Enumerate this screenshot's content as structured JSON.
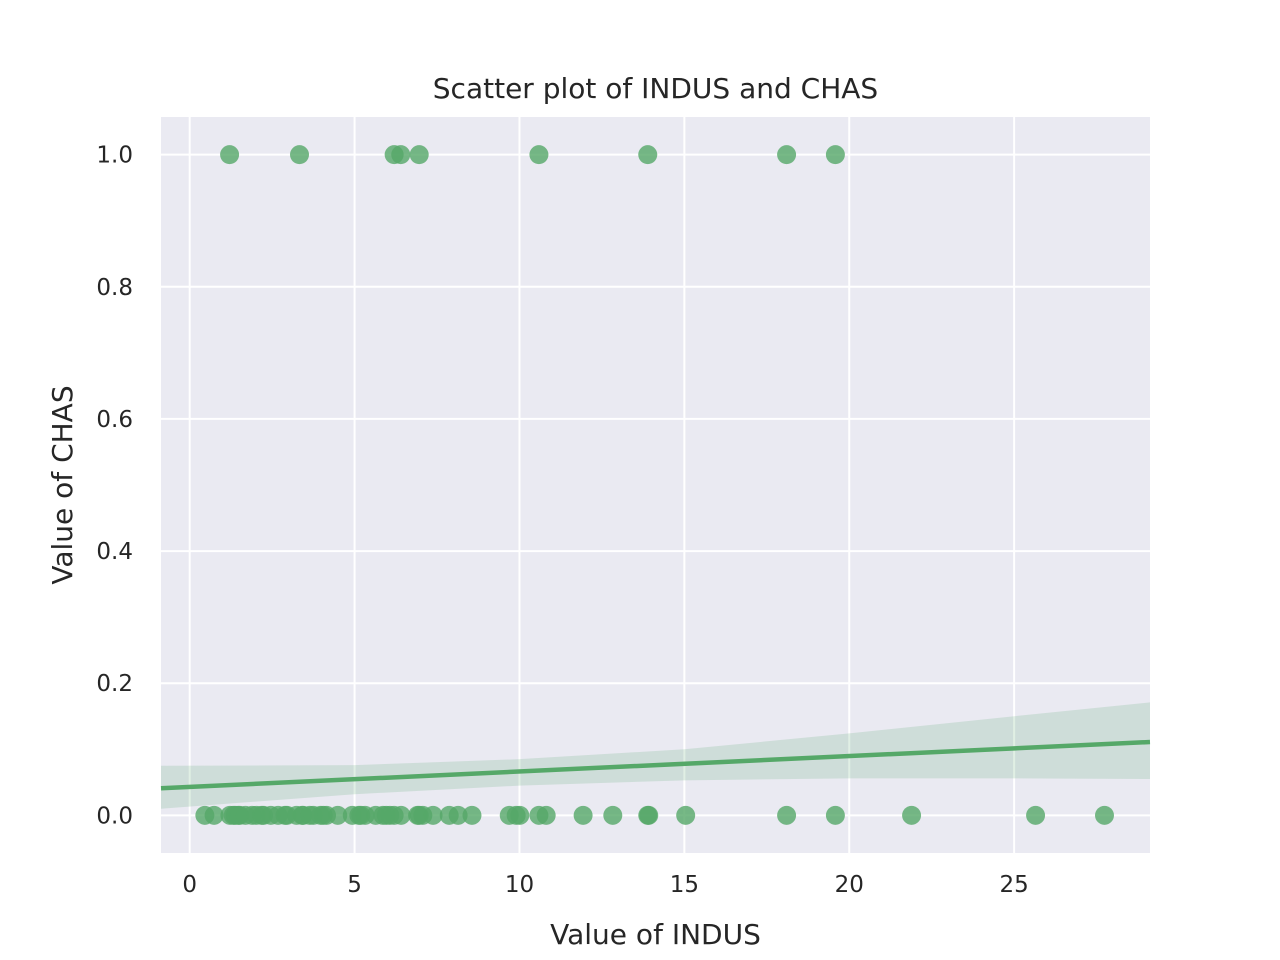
{
  "chart_data": {
    "type": "scatter",
    "title": "Scatter plot of INDUS and CHAS",
    "xlabel": "Value of INDUS",
    "ylabel": "Value of CHAS",
    "xlim": [
      -0.87,
      29.12
    ],
    "ylim": [
      -0.057,
      1.057
    ],
    "xticks": [
      0,
      5,
      10,
      15,
      20,
      25
    ],
    "yticks": [
      0.0,
      0.2,
      0.4,
      0.6,
      0.8,
      1.0
    ],
    "xtick_labels": [
      "0",
      "5",
      "10",
      "15",
      "20",
      "25"
    ],
    "ytick_labels": [
      "0.0",
      "0.2",
      "0.4",
      "0.6",
      "0.8",
      "1.0"
    ],
    "grid": true,
    "background": "#eaeaf2",
    "grid_color": "#ffffff",
    "point_color": "#55a868",
    "band_color": "#55a868",
    "points": [
      {
        "x": 1.21,
        "y": 1
      },
      {
        "x": 3.33,
        "y": 1
      },
      {
        "x": 6.2,
        "y": 1
      },
      {
        "x": 6.4,
        "y": 1
      },
      {
        "x": 6.96,
        "y": 1
      },
      {
        "x": 10.59,
        "y": 1
      },
      {
        "x": 13.89,
        "y": 1
      },
      {
        "x": 18.1,
        "y": 1
      },
      {
        "x": 19.58,
        "y": 1
      },
      {
        "x": 0.46,
        "y": 0
      },
      {
        "x": 0.74,
        "y": 0
      },
      {
        "x": 1.22,
        "y": 0
      },
      {
        "x": 1.32,
        "y": 0
      },
      {
        "x": 1.38,
        "y": 0
      },
      {
        "x": 1.47,
        "y": 0
      },
      {
        "x": 1.52,
        "y": 0
      },
      {
        "x": 1.69,
        "y": 0
      },
      {
        "x": 1.89,
        "y": 0
      },
      {
        "x": 2.02,
        "y": 0
      },
      {
        "x": 2.18,
        "y": 0
      },
      {
        "x": 2.24,
        "y": 0
      },
      {
        "x": 2.46,
        "y": 0
      },
      {
        "x": 2.68,
        "y": 0
      },
      {
        "x": 2.89,
        "y": 0
      },
      {
        "x": 2.95,
        "y": 0
      },
      {
        "x": 3.24,
        "y": 0
      },
      {
        "x": 3.41,
        "y": 0
      },
      {
        "x": 3.44,
        "y": 0
      },
      {
        "x": 3.64,
        "y": 0
      },
      {
        "x": 3.75,
        "y": 0
      },
      {
        "x": 3.97,
        "y": 0
      },
      {
        "x": 4.05,
        "y": 0
      },
      {
        "x": 4.15,
        "y": 0
      },
      {
        "x": 4.49,
        "y": 0
      },
      {
        "x": 4.93,
        "y": 0
      },
      {
        "x": 5.13,
        "y": 0
      },
      {
        "x": 5.19,
        "y": 0
      },
      {
        "x": 5.32,
        "y": 0
      },
      {
        "x": 5.64,
        "y": 0
      },
      {
        "x": 5.86,
        "y": 0
      },
      {
        "x": 5.96,
        "y": 0
      },
      {
        "x": 6.07,
        "y": 0
      },
      {
        "x": 6.2,
        "y": 0
      },
      {
        "x": 6.41,
        "y": 0
      },
      {
        "x": 6.91,
        "y": 0
      },
      {
        "x": 6.96,
        "y": 0
      },
      {
        "x": 7.07,
        "y": 0
      },
      {
        "x": 7.38,
        "y": 0
      },
      {
        "x": 7.87,
        "y": 0
      },
      {
        "x": 8.14,
        "y": 0
      },
      {
        "x": 8.56,
        "y": 0
      },
      {
        "x": 9.69,
        "y": 0
      },
      {
        "x": 9.9,
        "y": 0
      },
      {
        "x": 10.01,
        "y": 0
      },
      {
        "x": 10.59,
        "y": 0
      },
      {
        "x": 10.81,
        "y": 0
      },
      {
        "x": 11.93,
        "y": 0
      },
      {
        "x": 12.83,
        "y": 0
      },
      {
        "x": 13.89,
        "y": 0
      },
      {
        "x": 13.92,
        "y": 0
      },
      {
        "x": 15.04,
        "y": 0
      },
      {
        "x": 18.1,
        "y": 0
      },
      {
        "x": 19.58,
        "y": 0
      },
      {
        "x": 21.89,
        "y": 0
      },
      {
        "x": 25.65,
        "y": 0
      },
      {
        "x": 27.74,
        "y": 0
      }
    ],
    "regression": {
      "x": [
        -0.87,
        29.12
      ],
      "y": [
        0.041,
        0.111
      ],
      "ci_x": [
        -0.87,
        5,
        10,
        15,
        20,
        25,
        29.12
      ],
      "ci_lower": [
        0.01,
        0.032,
        0.045,
        0.053,
        0.056,
        0.056,
        0.055
      ],
      "ci_upper": [
        0.075,
        0.076,
        0.085,
        0.1,
        0.124,
        0.15,
        0.171
      ]
    }
  }
}
